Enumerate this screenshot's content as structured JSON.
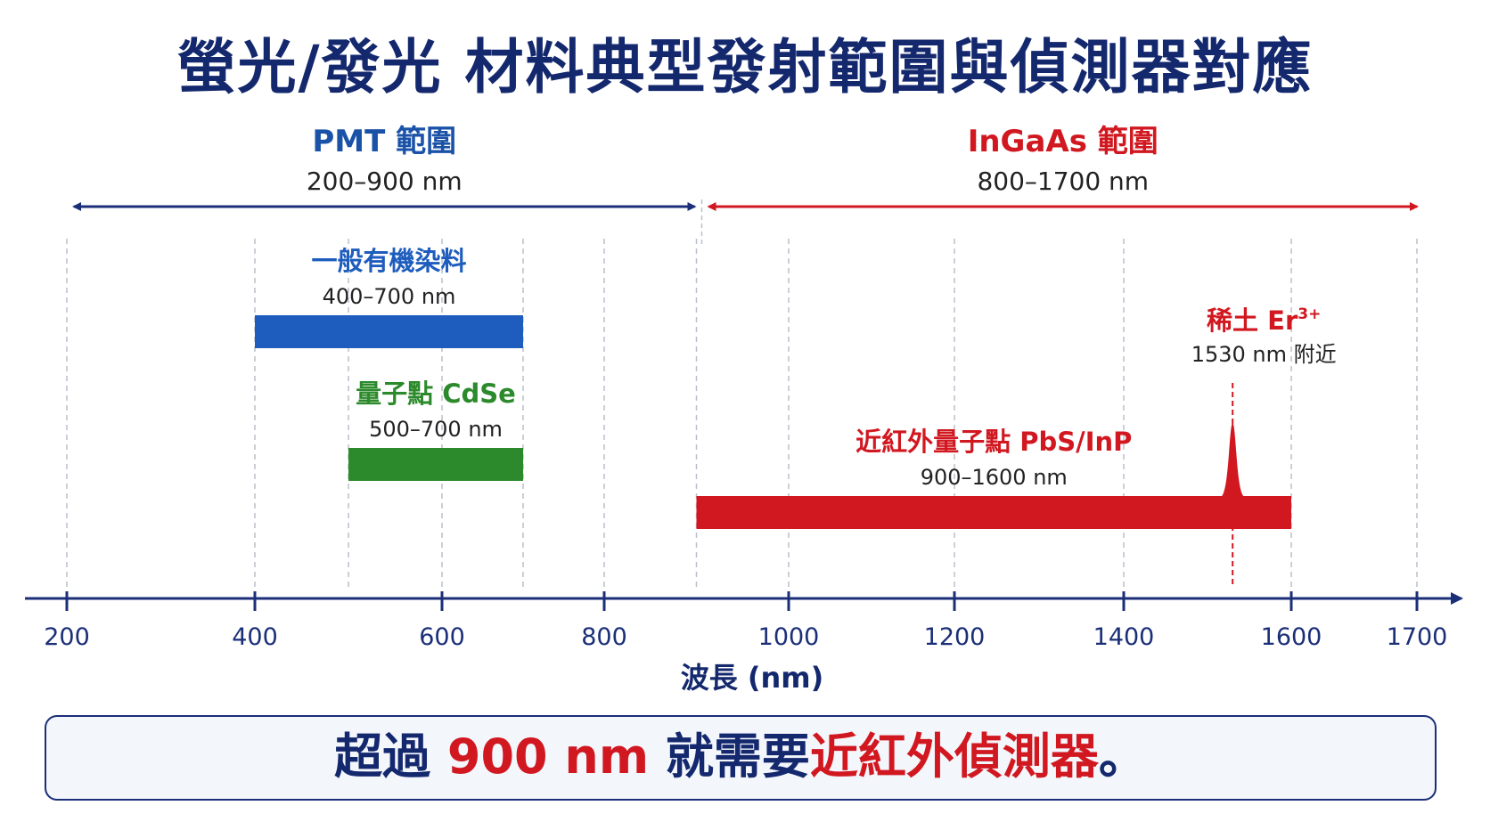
{
  "title": "螢光/發光 材料典型發射範圍與偵測器對應",
  "colors": {
    "navy": "#1b2f78",
    "pmt": "#1a52a8",
    "ingaas": "#d11820",
    "organic": "#1e5dbd",
    "quantum_dot": "#2c8a2c",
    "nir": "#d11820",
    "grid": "#b8bfcc"
  },
  "chart_data": {
    "type": "range_bar",
    "xlabel": "波長 (nm)",
    "x_ticks": [
      200,
      400,
      600,
      800,
      1000,
      1200,
      1400,
      1600,
      1700
    ],
    "detectors": [
      {
        "name": "PMT 範圍",
        "range_text": "200–900 nm",
        "range": [
          200,
          900
        ]
      },
      {
        "name": "InGaAs 範圍",
        "range_text": "800–1700 nm",
        "range": [
          800,
          1700
        ]
      }
    ],
    "materials": [
      {
        "name": "一般有機染料",
        "range_text": "400–700 nm",
        "range": [
          400,
          700
        ]
      },
      {
        "name": "量子點 CdSe",
        "range_text": "500–700 nm",
        "range": [
          500,
          700
        ]
      },
      {
        "name": "近紅外量子點 PbS/InP",
        "range_text": "900–1600 nm",
        "range": [
          900,
          1600
        ]
      }
    ],
    "peaks": [
      {
        "name": "稀土 Er",
        "superscript": "3+",
        "label": "1530 nm 附近",
        "x": 1530
      }
    ]
  },
  "footer": {
    "part1": "超過 ",
    "part2": "900 nm",
    "part3": " 就需要",
    "part4": "近紅外偵測器",
    "part5": "。"
  }
}
